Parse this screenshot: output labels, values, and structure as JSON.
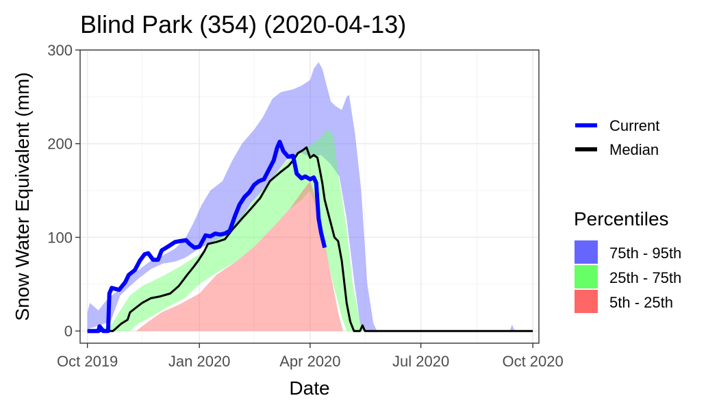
{
  "chart_data": {
    "type": "area",
    "title": "Blind Park (354) (2020-04-13)",
    "xlabel": "Date",
    "ylabel": "Snow Water Equivalent (mm)",
    "x_range": [
      "2019-09-25",
      "2020-10-06"
    ],
    "ylim": [
      -13,
      300
    ],
    "y_ticks": [
      0,
      100,
      200,
      300
    ],
    "x_ticks": [
      {
        "date": "2019-10-01",
        "label": "Oct 2019"
      },
      {
        "date": "2020-01-01",
        "label": "Jan 2020"
      },
      {
        "date": "2020-04-01",
        "label": "Apr 2020"
      },
      {
        "date": "2020-07-01",
        "label": "Jul 2020"
      },
      {
        "date": "2020-10-01",
        "label": "Oct 2020"
      }
    ],
    "x_minor_ticks": [
      "2019-11-15",
      "2020-02-15",
      "2020-05-16",
      "2020-08-16"
    ],
    "y_minor_ticks": [
      50,
      150,
      250
    ],
    "grid": true,
    "legend_position": "right",
    "lines": [
      {
        "name": "Current",
        "color": "#0000ff",
        "points": [
          [
            "2019-10-01",
            0
          ],
          [
            "2019-10-10",
            0
          ],
          [
            "2019-10-11",
            5
          ],
          [
            "2019-10-14",
            0
          ],
          [
            "2019-10-18",
            0
          ],
          [
            "2019-10-19",
            40
          ],
          [
            "2019-10-21",
            46
          ],
          [
            "2019-10-27",
            44
          ],
          [
            "2019-11-01",
            52
          ],
          [
            "2019-11-04",
            60
          ],
          [
            "2019-11-09",
            65
          ],
          [
            "2019-11-13",
            75
          ],
          [
            "2019-11-17",
            82
          ],
          [
            "2019-11-20",
            83
          ],
          [
            "2019-11-24",
            76
          ],
          [
            "2019-11-28",
            76
          ],
          [
            "2019-12-01",
            86
          ],
          [
            "2019-12-06",
            90
          ],
          [
            "2019-12-12",
            95
          ],
          [
            "2019-12-16",
            96
          ],
          [
            "2019-12-21",
            97
          ],
          [
            "2019-12-24",
            93
          ],
          [
            "2019-12-28",
            89
          ],
          [
            "2020-01-01",
            90
          ],
          [
            "2020-01-04",
            97
          ],
          [
            "2020-01-06",
            102
          ],
          [
            "2020-01-10",
            101
          ],
          [
            "2020-01-14",
            104
          ],
          [
            "2020-01-18",
            103
          ],
          [
            "2020-01-22",
            104
          ],
          [
            "2020-01-26",
            107
          ],
          [
            "2020-01-30",
            122
          ],
          [
            "2020-02-03",
            135
          ],
          [
            "2020-02-07",
            143
          ],
          [
            "2020-02-11",
            148
          ],
          [
            "2020-02-15",
            156
          ],
          [
            "2020-02-19",
            160
          ],
          [
            "2020-02-23",
            162
          ],
          [
            "2020-02-27",
            172
          ],
          [
            "2020-03-02",
            182
          ],
          [
            "2020-03-05",
            196
          ],
          [
            "2020-03-07",
            202
          ],
          [
            "2020-03-10",
            192
          ],
          [
            "2020-03-14",
            186
          ],
          [
            "2020-03-18",
            187
          ],
          [
            "2020-03-21",
            168
          ],
          [
            "2020-03-25",
            163
          ],
          [
            "2020-03-28",
            165
          ],
          [
            "2020-04-01",
            162
          ],
          [
            "2020-04-04",
            164
          ],
          [
            "2020-04-06",
            158
          ],
          [
            "2020-04-08",
            120
          ],
          [
            "2020-04-10",
            105
          ],
          [
            "2020-04-13",
            89
          ]
        ]
      },
      {
        "name": "Median",
        "color": "#000000",
        "points": [
          [
            "2019-10-01",
            0
          ],
          [
            "2019-10-22",
            0
          ],
          [
            "2019-10-29",
            8
          ],
          [
            "2019-11-03",
            12
          ],
          [
            "2019-11-05",
            20
          ],
          [
            "2019-11-10",
            25
          ],
          [
            "2019-11-15",
            30
          ],
          [
            "2019-11-22",
            35
          ],
          [
            "2019-11-30",
            37
          ],
          [
            "2019-12-08",
            40
          ],
          [
            "2019-12-15",
            48
          ],
          [
            "2019-12-22",
            60
          ],
          [
            "2019-12-27",
            68
          ],
          [
            "2019-12-31",
            75
          ],
          [
            "2020-01-05",
            85
          ],
          [
            "2020-01-08",
            93
          ],
          [
            "2020-01-15",
            95
          ],
          [
            "2020-01-22",
            98
          ],
          [
            "2020-01-28",
            108
          ],
          [
            "2020-02-05",
            120
          ],
          [
            "2020-02-12",
            130
          ],
          [
            "2020-02-20",
            142
          ],
          [
            "2020-02-28",
            160
          ],
          [
            "2020-03-08",
            170
          ],
          [
            "2020-03-14",
            176
          ],
          [
            "2020-03-18",
            182
          ],
          [
            "2020-03-22",
            190
          ],
          [
            "2020-03-26",
            193
          ],
          [
            "2020-03-29",
            196
          ],
          [
            "2020-04-01",
            185
          ],
          [
            "2020-04-04",
            188
          ],
          [
            "2020-04-07",
            185
          ],
          [
            "2020-04-09",
            172
          ],
          [
            "2020-04-11",
            158
          ],
          [
            "2020-04-13",
            140
          ],
          [
            "2020-04-16",
            125
          ],
          [
            "2020-04-19",
            110
          ],
          [
            "2020-04-21",
            100
          ],
          [
            "2020-04-24",
            96
          ],
          [
            "2020-04-27",
            75
          ],
          [
            "2020-05-01",
            30
          ],
          [
            "2020-05-04",
            10
          ],
          [
            "2020-05-07",
            0
          ],
          [
            "2020-05-12",
            0
          ],
          [
            "2020-05-14",
            6
          ],
          [
            "2020-05-16",
            0
          ],
          [
            "2020-10-01",
            0
          ]
        ]
      }
    ],
    "bands": [
      {
        "name": "75th - 95th",
        "color": "#6666ff",
        "opacity": 0.45,
        "lower": [
          [
            "2019-10-01",
            2
          ],
          [
            "2019-10-20",
            10
          ],
          [
            "2019-10-28",
            38
          ],
          [
            "2019-11-05",
            48
          ],
          [
            "2019-11-12",
            56
          ],
          [
            "2019-11-22",
            66
          ],
          [
            "2019-12-02",
            72
          ],
          [
            "2019-12-12",
            74
          ],
          [
            "2019-12-20",
            78
          ],
          [
            "2020-01-01",
            88
          ],
          [
            "2020-01-10",
            94
          ],
          [
            "2020-01-20",
            100
          ],
          [
            "2020-02-01",
            112
          ],
          [
            "2020-02-12",
            136
          ],
          [
            "2020-02-25",
            155
          ],
          [
            "2020-03-08",
            175
          ],
          [
            "2020-03-15",
            186
          ],
          [
            "2020-03-25",
            190
          ],
          [
            "2020-04-02",
            185
          ],
          [
            "2020-04-10",
            188
          ],
          [
            "2020-04-18",
            178
          ],
          [
            "2020-04-25",
            165
          ],
          [
            "2020-05-01",
            120
          ],
          [
            "2020-05-07",
            55
          ],
          [
            "2020-05-12",
            8
          ],
          [
            "2020-05-16",
            0
          ],
          [
            "2020-10-01",
            0
          ]
        ],
        "upper": [
          [
            "2019-10-01",
            20
          ],
          [
            "2019-10-03",
            30
          ],
          [
            "2019-10-10",
            22
          ],
          [
            "2019-10-18",
            35
          ],
          [
            "2019-10-25",
            42
          ],
          [
            "2019-11-05",
            58
          ],
          [
            "2019-11-15",
            68
          ],
          [
            "2019-11-22",
            75
          ],
          [
            "2019-12-01",
            80
          ],
          [
            "2019-12-12",
            88
          ],
          [
            "2019-12-20",
            98
          ],
          [
            "2019-12-27",
            115
          ],
          [
            "2020-01-03",
            135
          ],
          [
            "2020-01-10",
            150
          ],
          [
            "2020-01-20",
            160
          ],
          [
            "2020-01-28",
            182
          ],
          [
            "2020-02-05",
            200
          ],
          [
            "2020-02-15",
            215
          ],
          [
            "2020-02-22",
            228
          ],
          [
            "2020-03-01",
            248
          ],
          [
            "2020-03-08",
            255
          ],
          [
            "2020-03-18",
            258
          ],
          [
            "2020-03-25",
            262
          ],
          [
            "2020-04-01",
            268
          ],
          [
            "2020-04-04",
            280
          ],
          [
            "2020-04-08",
            287
          ],
          [
            "2020-04-11",
            280
          ],
          [
            "2020-04-14",
            265
          ],
          [
            "2020-04-18",
            245
          ],
          [
            "2020-04-22",
            240
          ],
          [
            "2020-04-27",
            236
          ],
          [
            "2020-05-01",
            250
          ],
          [
            "2020-05-03",
            252
          ],
          [
            "2020-05-08",
            210
          ],
          [
            "2020-05-13",
            150
          ],
          [
            "2020-05-18",
            50
          ],
          [
            "2020-05-23",
            8
          ],
          [
            "2020-05-26",
            0
          ],
          [
            "2020-09-12",
            0
          ],
          [
            "2020-09-14",
            7
          ],
          [
            "2020-09-16",
            0
          ],
          [
            "2020-10-01",
            0
          ]
        ]
      },
      {
        "name": "25th - 75th",
        "color": "#66ff66",
        "opacity": 0.45,
        "lower": [
          [
            "2019-10-01",
            0
          ],
          [
            "2019-11-05",
            0
          ],
          [
            "2019-11-12",
            8
          ],
          [
            "2019-11-22",
            15
          ],
          [
            "2019-12-05",
            25
          ],
          [
            "2019-12-20",
            35
          ],
          [
            "2020-01-01",
            50
          ],
          [
            "2020-01-15",
            62
          ],
          [
            "2020-02-01",
            75
          ],
          [
            "2020-02-15",
            90
          ],
          [
            "2020-03-01",
            110
          ],
          [
            "2020-03-15",
            130
          ],
          [
            "2020-03-25",
            140
          ],
          [
            "2020-04-01",
            150
          ],
          [
            "2020-04-06",
            130
          ],
          [
            "2020-04-13",
            90
          ],
          [
            "2020-04-20",
            50
          ],
          [
            "2020-04-27",
            15
          ],
          [
            "2020-05-01",
            0
          ],
          [
            "2020-10-01",
            0
          ]
        ],
        "upper": [
          [
            "2019-10-01",
            0
          ],
          [
            "2019-10-20",
            5
          ],
          [
            "2019-10-28",
            22
          ],
          [
            "2019-11-05",
            38
          ],
          [
            "2019-11-15",
            48
          ],
          [
            "2019-12-01",
            58
          ],
          [
            "2019-12-15",
            68
          ],
          [
            "2020-01-01",
            82
          ],
          [
            "2020-01-15",
            100
          ],
          [
            "2020-02-01",
            118
          ],
          [
            "2020-02-15",
            140
          ],
          [
            "2020-03-01",
            165
          ],
          [
            "2020-03-12",
            180
          ],
          [
            "2020-03-22",
            192
          ],
          [
            "2020-04-01",
            198
          ],
          [
            "2020-04-08",
            205
          ],
          [
            "2020-04-15",
            215
          ],
          [
            "2020-04-20",
            210
          ],
          [
            "2020-04-25",
            160
          ],
          [
            "2020-05-01",
            110
          ],
          [
            "2020-05-06",
            50
          ],
          [
            "2020-05-12",
            10
          ],
          [
            "2020-05-15",
            0
          ],
          [
            "2020-10-01",
            0
          ]
        ]
      },
      {
        "name": "5th - 25th",
        "color": "#ff6666",
        "opacity": 0.45,
        "lower": [
          [
            "2019-10-01",
            0
          ],
          [
            "2020-10-01",
            0
          ]
        ],
        "upper": [
          [
            "2019-10-01",
            0
          ],
          [
            "2019-11-10",
            0
          ],
          [
            "2019-11-20",
            10
          ],
          [
            "2019-12-01",
            20
          ],
          [
            "2019-12-15",
            28
          ],
          [
            "2020-01-01",
            40
          ],
          [
            "2020-01-15",
            60
          ],
          [
            "2020-02-01",
            75
          ],
          [
            "2020-02-15",
            90
          ],
          [
            "2020-03-01",
            110
          ],
          [
            "2020-03-15",
            130
          ],
          [
            "2020-03-25",
            148
          ],
          [
            "2020-04-01",
            160
          ],
          [
            "2020-04-06",
            140
          ],
          [
            "2020-04-12",
            100
          ],
          [
            "2020-04-18",
            60
          ],
          [
            "2020-04-24",
            20
          ],
          [
            "2020-04-28",
            0
          ],
          [
            "2020-10-01",
            0
          ]
        ]
      }
    ],
    "legends": [
      {
        "key": "lines",
        "title": "",
        "entries": [
          "Current",
          "Median"
        ]
      },
      {
        "key": "bands",
        "title": "Percentiles",
        "entries": [
          "75th - 95th",
          "25th - 75th",
          "5th - 25th"
        ]
      }
    ]
  }
}
